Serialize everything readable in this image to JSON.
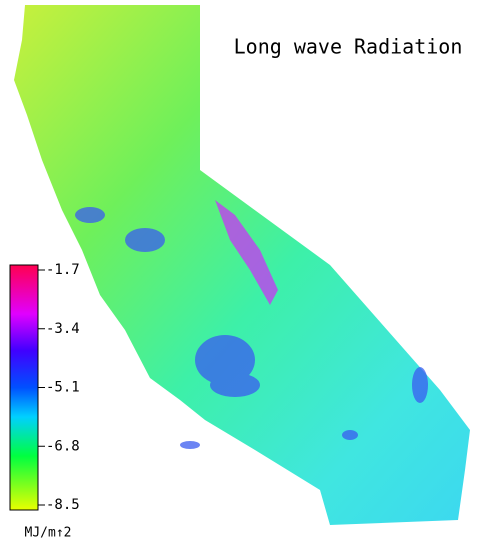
{
  "title": "Long wave Radiation",
  "colorbar": {
    "range": [
      -8.5,
      -1.7
    ],
    "ticks": [
      -1.7,
      -3.4,
      -5.1,
      -6.8,
      -8.5
    ],
    "unit": "MJ/m↑2"
  }
}
